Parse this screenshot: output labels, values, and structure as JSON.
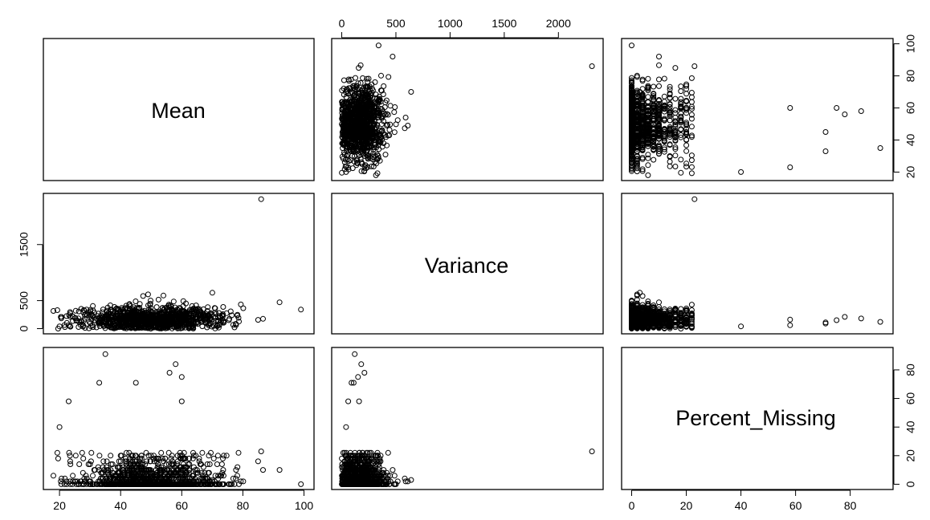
{
  "chart_data": {
    "type": "scatter",
    "title": "",
    "variables": [
      {
        "name": "Mean",
        "range": [
          18,
          100
        ],
        "ticks": [
          20,
          40,
          60,
          80,
          100
        ]
      },
      {
        "name": "Variance",
        "range": [
          0,
          2320
        ],
        "ticks": [
          0,
          500,
          1500
        ],
        "top_ticks": [
          0,
          500,
          1000,
          1500,
          2000
        ]
      },
      {
        "name": "Percent_Missing",
        "range": [
          0,
          92
        ],
        "ticks": [
          0,
          20,
          40,
          60,
          80
        ]
      }
    ],
    "highlighted_points": [
      {
        "mean": 86,
        "variance": 2310,
        "percent_missing": 23
      },
      {
        "mean": 99,
        "variance": 340,
        "percent_missing": 0
      },
      {
        "mean": 92,
        "variance": 470,
        "percent_missing": 10
      },
      {
        "mean": 35,
        "variance": 120,
        "percent_missing": 91
      },
      {
        "mean": 58,
        "variance": 180,
        "percent_missing": 84
      },
      {
        "mean": 56,
        "variance": 210,
        "percent_missing": 78
      },
      {
        "mean": 60,
        "variance": 150,
        "percent_missing": 75
      },
      {
        "mean": 45,
        "variance": 110,
        "percent_missing": 71
      },
      {
        "mean": 33,
        "variance": 90,
        "percent_missing": 71
      },
      {
        "mean": 60,
        "variance": 160,
        "percent_missing": 58
      },
      {
        "mean": 23,
        "variance": 60,
        "percent_missing": 58
      },
      {
        "mean": 20,
        "variance": 40,
        "percent_missing": 40
      },
      {
        "mean": 70,
        "variance": 640,
        "percent_missing": 3
      },
      {
        "mean": 49,
        "variance": 610,
        "percent_missing": 2
      },
      {
        "mean": 54,
        "variance": 590,
        "percent_missing": 2
      }
    ],
    "bulk": {
      "n": 1100,
      "mean_center": 50,
      "mean_sd": 12,
      "variance_center": 170,
      "variance_sd": 110,
      "percent_missing_levels": [
        0,
        2,
        4,
        6,
        8,
        10,
        12,
        14,
        16,
        18,
        20,
        22
      ]
    }
  }
}
